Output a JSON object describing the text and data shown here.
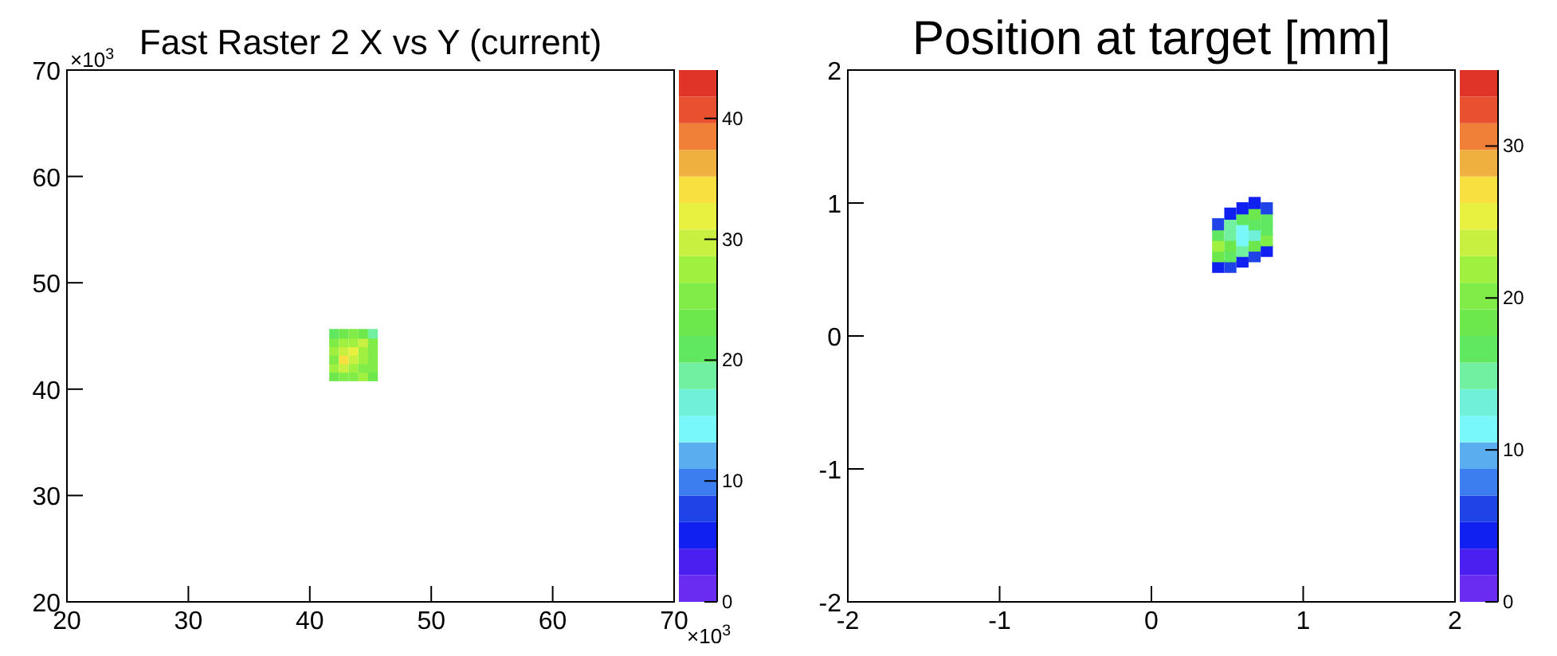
{
  "chart_data": [
    {
      "type": "scatter",
      "title": "Fast Raster 2 X vs Y (current)",
      "marker": "square",
      "annotations": [
        "×10$^{3}$",
        "×10$^{3}$"
      ],
      "xlim": [
        20,
        70
      ],
      "ylim": [
        20,
        70
      ],
      "xticks": [
        20,
        30,
        40,
        50,
        60,
        70
      ],
      "yticks": [
        20,
        30,
        40,
        50,
        60,
        70
      ],
      "clim": [
        0,
        44
      ],
      "cticks": [
        0,
        10,
        20,
        30,
        40
      ],
      "x": [
        42.0,
        42.8,
        43.6,
        44.4,
        45.2,
        42.0,
        42.8,
        43.6,
        44.4,
        45.2,
        42.0,
        42.8,
        43.6,
        44.4,
        45.2,
        42.0,
        42.8,
        43.6,
        44.4,
        45.2,
        42.0,
        42.8,
        43.6,
        44.4,
        45.2,
        42.0,
        42.8,
        43.6,
        44.4,
        45.2
      ],
      "values": [
        41.2,
        41.2,
        41.2,
        41.2,
        41.2,
        42.0,
        42.0,
        42.0,
        42.0,
        42.0,
        42.8,
        42.8,
        42.8,
        42.8,
        42.8,
        43.6,
        43.6,
        43.6,
        43.6,
        43.6,
        44.4,
        44.4,
        44.4,
        44.4,
        44.4,
        45.2,
        45.2,
        45.2,
        45.2,
        45.2
      ],
      "cvalues": [
        24,
        26,
        25,
        27,
        22,
        27,
        30,
        28,
        26,
        25,
        26,
        35,
        29,
        28,
        26,
        28,
        29,
        31,
        27,
        25,
        25,
        28,
        27,
        30,
        26,
        20,
        24,
        25,
        23,
        18
      ]
    },
    {
      "type": "scatter",
      "title": "Position at target [mm]",
      "marker": "square",
      "xlim": [
        -2,
        2
      ],
      "ylim": [
        -2,
        2
      ],
      "xticks": [
        -2,
        -1,
        0,
        1,
        2
      ],
      "yticks": [
        -2,
        -1,
        0,
        1,
        2
      ],
      "clim": [
        0,
        35
      ],
      "cticks": [
        0,
        10,
        20,
        30
      ],
      "x": [
        0.44,
        0.44,
        0.44,
        0.44,
        0.44,
        0.52,
        0.52,
        0.52,
        0.52,
        0.52,
        0.52,
        0.6,
        0.6,
        0.6,
        0.6,
        0.6,
        0.6,
        0.68,
        0.68,
        0.68,
        0.68,
        0.68,
        0.68,
        0.76,
        0.76,
        0.76,
        0.76,
        0.76
      ],
      "values": [
        0.52,
        0.6,
        0.68,
        0.76,
        0.84,
        0.52,
        0.6,
        0.68,
        0.76,
        0.84,
        0.92,
        0.56,
        0.64,
        0.72,
        0.8,
        0.88,
        0.96,
        0.6,
        0.68,
        0.76,
        0.84,
        0.92,
        1.0,
        0.64,
        0.72,
        0.8,
        0.88,
        0.96
      ],
      "cvalues": [
        5,
        18,
        21,
        17,
        6,
        6,
        16,
        19,
        14,
        15,
        5,
        5,
        14,
        12,
        11,
        16,
        4,
        6,
        18,
        13,
        17,
        19,
        5,
        5,
        20,
        17,
        16,
        6
      ]
    }
  ]
}
